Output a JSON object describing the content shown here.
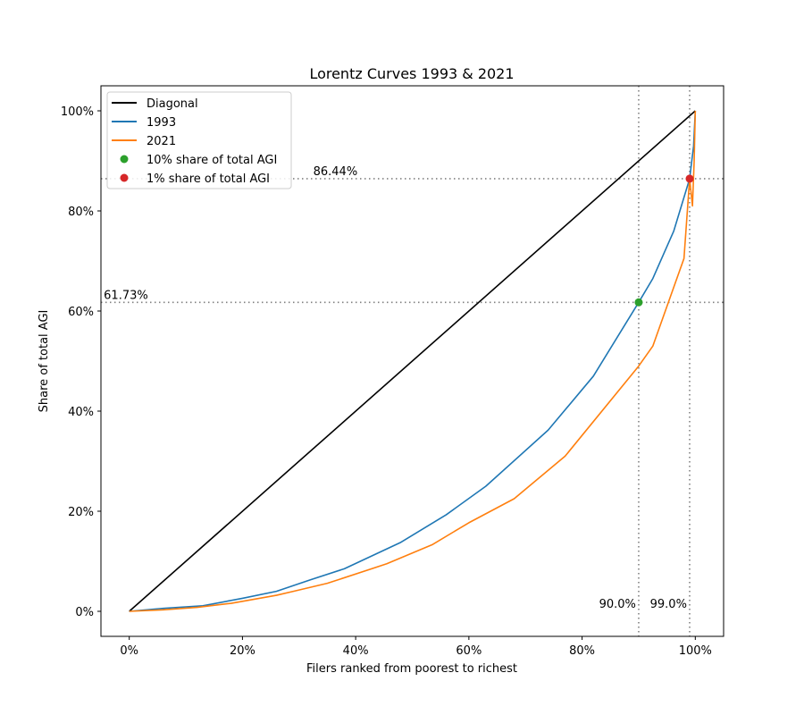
{
  "chart_data": {
    "type": "line",
    "title": "Lorentz Curves 1993 & 2021",
    "xlabel": "Filers ranked from poorest to richest",
    "ylabel": "Share of total AGI",
    "xlim": [
      -0.05,
      1.05
    ],
    "ylim": [
      -0.05,
      1.05
    ],
    "x_ticks": [
      0,
      0.2,
      0.4,
      0.6,
      0.8,
      1.0
    ],
    "x_tick_labels": [
      "0%",
      "20%",
      "40%",
      "60%",
      "80%",
      "100%"
    ],
    "y_ticks": [
      0,
      0.2,
      0.4,
      0.6,
      0.8,
      1.0
    ],
    "y_tick_labels": [
      "0%",
      "20%",
      "40%",
      "60%",
      "80%",
      "100%"
    ],
    "legend_position": "top-left",
    "grid": false,
    "series": [
      {
        "name": "Diagonal",
        "color": "#000000",
        "x": [
          0,
          1
        ],
        "y": [
          0,
          1
        ]
      },
      {
        "name": "1993",
        "color": "#1f77b4",
        "x": [
          0,
          0.06,
          0.13,
          0.2,
          0.26,
          0.32,
          0.38,
          0.48,
          0.56,
          0.63,
          0.74,
          0.82,
          0.9,
          0.925,
          0.962,
          0.99,
          0.997,
          1.0
        ],
        "y": [
          0,
          0.006,
          0.011,
          0.026,
          0.04,
          0.063,
          0.085,
          0.138,
          0.193,
          0.25,
          0.362,
          0.47,
          0.6173,
          0.665,
          0.76,
          0.8644,
          0.93,
          1.0
        ]
      },
      {
        "name": "2021",
        "color": "#ff7f0e",
        "x": [
          0,
          0.06,
          0.12,
          0.18,
          0.26,
          0.29,
          0.35,
          0.455,
          0.535,
          0.6,
          0.68,
          0.77,
          0.9,
          0.925,
          0.98,
          0.99,
          0.995,
          0.998,
          1.0
        ],
        "y": [
          0,
          0.003,
          0.008,
          0.016,
          0.032,
          0.04,
          0.056,
          0.095,
          0.133,
          0.177,
          0.225,
          0.31,
          0.49,
          0.53,
          0.705,
          0.8644,
          0.81,
          0.9,
          1.0
        ]
      }
    ],
    "markers": [
      {
        "name": "10% share of total AGI",
        "color": "#2ca02c",
        "x": 0.9,
        "y": 0.6173
      },
      {
        "name": "1% share of total AGI",
        "color": "#d62728",
        "x": 0.99,
        "y": 0.8644
      }
    ],
    "reference_lines": {
      "horizontal": [
        0.6173,
        0.8644
      ],
      "vertical": [
        0.9,
        0.99
      ]
    },
    "annotations": [
      {
        "text": "61.73%",
        "x": -0.045,
        "y": 0.6173
      },
      {
        "text": "86.44%",
        "x": 0.325,
        "y": 0.8644
      },
      {
        "text": "90.0%",
        "x": 0.83,
        "y": 0.0
      },
      {
        "text": "99.0%",
        "x": 0.92,
        "y": 0.0
      }
    ]
  }
}
